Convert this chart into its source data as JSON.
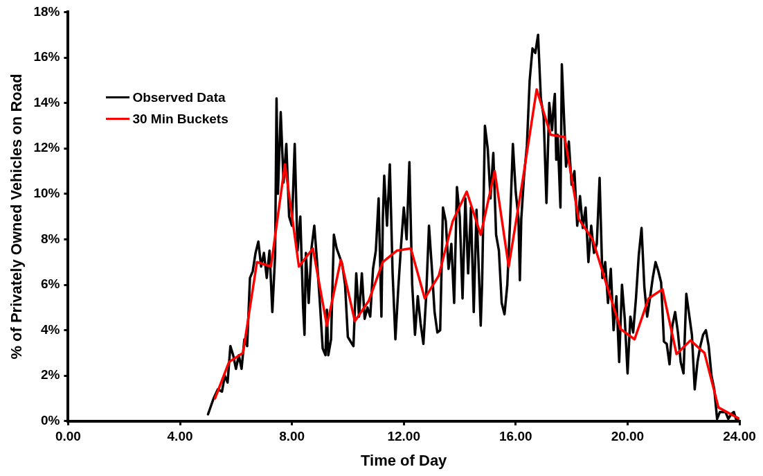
{
  "chart_data": {
    "type": "line",
    "xlabel": "Time of Day",
    "ylabel": "% of Privately Owned Vehicles on Road",
    "xlim": [
      0,
      24
    ],
    "ylim": [
      0,
      18
    ],
    "xticks": [
      {
        "value": 0,
        "label": "0.00"
      },
      {
        "value": 4,
        "label": "4.00"
      },
      {
        "value": 8,
        "label": "8.00"
      },
      {
        "value": 12,
        "label": "12.00"
      },
      {
        "value": 16,
        "label": "16.00"
      },
      {
        "value": 20,
        "label": "20.00"
      },
      {
        "value": 24,
        "label": "24.00"
      }
    ],
    "yticks": [
      {
        "value": 0,
        "label": "0%"
      },
      {
        "value": 2,
        "label": "2%"
      },
      {
        "value": 4,
        "label": "4%"
      },
      {
        "value": 6,
        "label": "6%"
      },
      {
        "value": 8,
        "label": "8%"
      },
      {
        "value": 10,
        "label": "10%"
      },
      {
        "value": 12,
        "label": "12%"
      },
      {
        "value": 14,
        "label": "14%"
      },
      {
        "value": 16,
        "label": "16%"
      },
      {
        "value": 18,
        "label": "18%"
      }
    ],
    "grid": false,
    "legend": "top left",
    "marker": "none",
    "line_style": "solid",
    "series": [
      {
        "name": "Observed Data",
        "color": "#000000",
        "x": [
          5.0,
          5.2,
          5.35,
          5.5,
          5.6,
          5.7,
          5.8,
          5.9,
          6.0,
          6.1,
          6.2,
          6.3,
          6.4,
          6.5,
          6.6,
          6.7,
          6.8,
          6.9,
          7.0,
          7.1,
          7.2,
          7.3,
          7.4,
          7.45,
          7.5,
          7.6,
          7.7,
          7.8,
          7.9,
          8.0,
          8.1,
          8.2,
          8.3,
          8.4,
          8.45,
          8.5,
          8.6,
          8.7,
          8.8,
          8.9,
          9.0,
          9.1,
          9.2,
          9.25,
          9.3,
          9.4,
          9.5,
          9.6,
          9.8,
          9.9,
          10.0,
          10.1,
          10.2,
          10.3,
          10.4,
          10.5,
          10.6,
          10.7,
          10.8,
          10.9,
          11.0,
          11.1,
          11.2,
          11.25,
          11.3,
          11.4,
          11.5,
          11.6,
          11.7,
          11.8,
          11.9,
          12.0,
          12.1,
          12.2,
          12.3,
          12.4,
          12.5,
          12.6,
          12.7,
          12.8,
          12.9,
          13.0,
          13.1,
          13.2,
          13.3,
          13.4,
          13.5,
          13.6,
          13.7,
          13.8,
          13.9,
          14.0,
          14.1,
          14.2,
          14.3,
          14.4,
          14.5,
          14.6,
          14.7,
          14.75,
          14.8,
          14.9,
          15.0,
          15.1,
          15.2,
          15.3,
          15.4,
          15.5,
          15.6,
          15.7,
          15.8,
          15.9,
          16.0,
          16.1,
          16.15,
          16.2,
          16.3,
          16.4,
          16.5,
          16.6,
          16.7,
          16.8,
          16.9,
          17.0,
          17.1,
          17.2,
          17.3,
          17.35,
          17.4,
          17.45,
          17.5,
          17.6,
          17.65,
          17.7,
          17.8,
          17.9,
          18.0,
          18.1,
          18.2,
          18.3,
          18.4,
          18.5,
          18.6,
          18.7,
          18.8,
          18.9,
          19.0,
          19.1,
          19.2,
          19.3,
          19.4,
          19.5,
          19.6,
          19.7,
          19.8,
          19.9,
          20.0,
          20.1,
          20.2,
          20.3,
          20.4,
          20.5,
          20.6,
          20.7,
          20.8,
          20.9,
          21.0,
          21.1,
          21.2,
          21.3,
          21.4,
          21.5,
          21.6,
          21.7,
          21.8,
          21.9,
          22.0,
          22.1,
          22.2,
          22.3,
          22.4,
          22.5,
          22.6,
          22.7,
          22.8,
          22.9,
          23.0,
          23.1,
          23.2,
          23.3,
          23.5,
          23.6,
          23.7,
          23.8,
          23.9,
          24.0
        ],
        "values": [
          0.3,
          1.0,
          1.4,
          1.3,
          2.0,
          1.7,
          3.3,
          2.9,
          2.3,
          2.9,
          2.3,
          3.6,
          3.3,
          6.3,
          6.6,
          7.4,
          7.9,
          6.8,
          7.4,
          6.3,
          7.5,
          4.8,
          7.3,
          14.2,
          10.0,
          13.6,
          10.5,
          12.2,
          9.0,
          8.6,
          12.2,
          7.5,
          9.0,
          5.0,
          3.8,
          7.4,
          5.2,
          7.6,
          8.6,
          7.0,
          5.2,
          3.2,
          2.9,
          4.9,
          2.9,
          3.6,
          8.2,
          7.6,
          6.9,
          6.0,
          3.7,
          3.5,
          3.3,
          6.5,
          4.6,
          6.5,
          4.5,
          5.0,
          4.6,
          6.7,
          7.5,
          9.8,
          4.6,
          8.9,
          10.8,
          8.6,
          11.3,
          6.5,
          3.6,
          5.8,
          7.7,
          9.4,
          8.0,
          11.4,
          6.0,
          3.8,
          5.5,
          4.3,
          3.4,
          5.5,
          8.6,
          6.8,
          4.8,
          3.9,
          4.0,
          9.4,
          8.8,
          6.7,
          7.8,
          5.2,
          10.3,
          9.0,
          5.4,
          9.8,
          6.5,
          9.4,
          4.8,
          9.3,
          6.0,
          4.2,
          6.1,
          13.0,
          12.0,
          9.8,
          11.8,
          8.2,
          7.5,
          5.2,
          4.7,
          6.0,
          8.8,
          12.2,
          10.1,
          8.9,
          6.2,
          8.9,
          10.8,
          12.1,
          15.0,
          16.4,
          16.2,
          17.0,
          14.2,
          13.4,
          9.6,
          14.0,
          12.8,
          13.8,
          14.4,
          11.5,
          12.6,
          9.4,
          15.7,
          14.2,
          11.2,
          12.3,
          10.4,
          11.0,
          8.6,
          9.9,
          8.5,
          9.4,
          7.0,
          8.6,
          7.4,
          7.8,
          10.7,
          6.3,
          7.0,
          5.2,
          6.7,
          4.0,
          5.5,
          2.6,
          6.0,
          4.5,
          2.1,
          4.6,
          3.9,
          5.4,
          7.3,
          8.5,
          5.9,
          4.6,
          5.4,
          6.3,
          7.0,
          6.6,
          6.1,
          3.5,
          3.4,
          2.5,
          4.2,
          4.8,
          3.9,
          2.6,
          2.1,
          5.6,
          4.7,
          3.8,
          1.4,
          2.6,
          3.3,
          3.8,
          4.0,
          3.3,
          2.0,
          1.4,
          0.1,
          0.4,
          0.4,
          0.1,
          0.3,
          0.4,
          0.0,
          0.1
        ]
      },
      {
        "name": "30 Min Buckets",
        "color": "#ff0000",
        "x": [
          5.25,
          5.75,
          6.25,
          6.75,
          7.25,
          7.75,
          8.25,
          8.75,
          9.25,
          9.75,
          10.25,
          10.75,
          11.25,
          11.75,
          12.25,
          12.75,
          13.25,
          13.75,
          14.25,
          14.75,
          15.25,
          15.75,
          16.25,
          16.75,
          17.25,
          17.75,
          18.25,
          18.75,
          19.25,
          19.75,
          20.25,
          20.75,
          21.25,
          21.75,
          22.25,
          22.75,
          23.25,
          24.0
        ],
        "values": [
          1.0,
          2.6,
          3.0,
          7.0,
          6.8,
          11.3,
          6.8,
          7.6,
          4.2,
          7.1,
          4.4,
          5.3,
          7.0,
          7.5,
          7.6,
          5.4,
          6.4,
          8.8,
          10.1,
          8.2,
          11.0,
          6.8,
          10.6,
          14.6,
          12.6,
          12.5,
          8.9,
          8.0,
          6.0,
          4.05,
          3.6,
          5.4,
          5.8,
          2.95,
          3.55,
          3.0,
          0.6,
          0.1
        ]
      }
    ]
  }
}
